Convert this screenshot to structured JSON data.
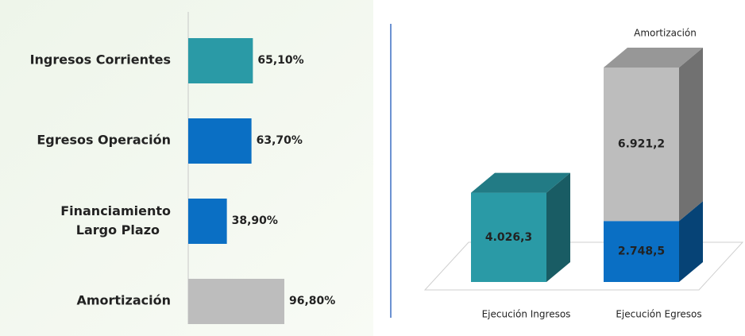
{
  "chart_data": [
    {
      "type": "hbar",
      "categories": [
        "Ingresos Corrientes",
        "Egresos Operación",
        "Financiamiento Largo Plazo",
        "Amortización"
      ],
      "values": [
        65.1,
        63.7,
        38.9,
        96.8
      ],
      "value_labels": [
        "65,10%",
        "63,70%",
        "38,90%",
        "96,80%"
      ],
      "colors": [
        "#2a9aa6",
        "#0a6fc4",
        "#0a6fc4",
        "#bdbdbd"
      ]
    },
    {
      "type": "bar3d_stacked",
      "categories": [
        "Ejecución Ingresos",
        "Ejecución Egresos"
      ],
      "series": [
        {
          "values": [
            4026.3,
            2748.5
          ],
          "value_labels": [
            "4.026,3",
            "2.748,5"
          ],
          "colors": [
            "#2a9aa6",
            "#0a6fc4"
          ]
        },
        {
          "name": "Amortización",
          "values": [
            null,
            6921.2
          ],
          "value_labels": [
            null,
            "6.921,2"
          ],
          "color": "#bdbdbd"
        }
      ]
    }
  ]
}
